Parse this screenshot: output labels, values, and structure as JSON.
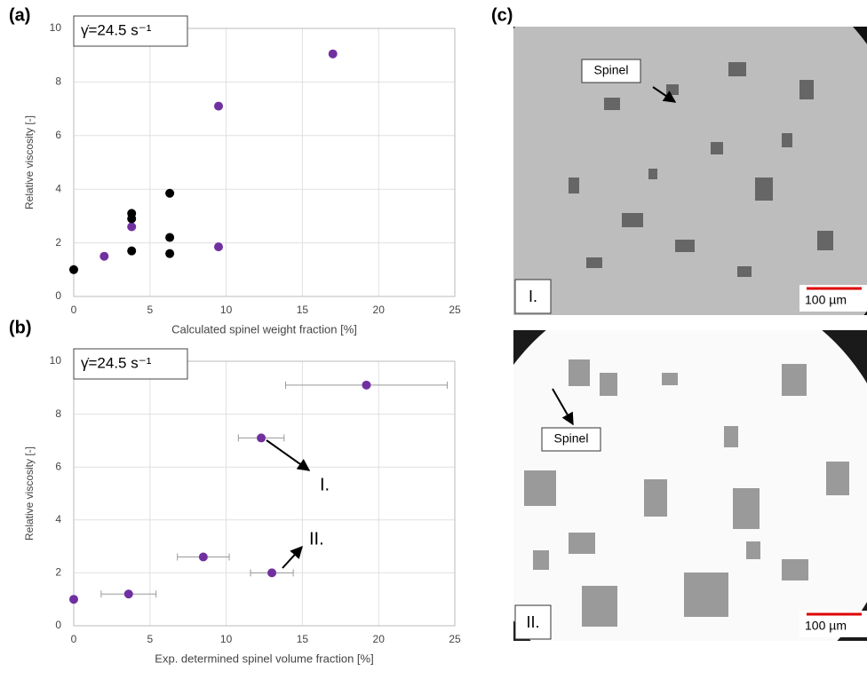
{
  "chart_data": [
    {
      "type": "scatter",
      "panel": "(a)",
      "annotation": "γ̇=24.5 s⁻¹",
      "x_label": "Calculated spinel weight fraction [%]",
      "y_label": "Relative viscosity [-]",
      "xlim": [
        0,
        25
      ],
      "xticks": [
        0,
        5,
        10,
        15,
        20,
        25
      ],
      "ylim": [
        0,
        10
      ],
      "yticks": [
        0,
        2,
        4,
        6,
        8,
        10
      ],
      "grid": true,
      "series": [
        {
          "color": "#7030a0",
          "x": [
            2.0,
            3.8,
            9.5,
            9.5,
            17.0
          ],
          "values": [
            1.5,
            2.6,
            1.85,
            7.1,
            9.05
          ]
        },
        {
          "color": "#000000",
          "x": [
            0,
            3.8,
            3.8,
            3.8,
            6.3,
            6.3,
            6.3
          ],
          "values": [
            1.0,
            1.7,
            2.9,
            3.1,
            1.6,
            2.2,
            3.85
          ]
        }
      ]
    },
    {
      "type": "scatter",
      "panel": "(b)",
      "annotation": "γ̇=24.5 s⁻¹",
      "x_label": "Exp. determined spinel volume fraction [%]",
      "y_label": "Relative viscosity [-]",
      "xlim": [
        0,
        25
      ],
      "xticks": [
        0,
        5,
        10,
        15,
        20,
        25
      ],
      "ylim": [
        0,
        10
      ],
      "yticks": [
        0,
        2,
        4,
        6,
        8,
        10
      ],
      "grid": true,
      "series": [
        {
          "color": "#7030a0",
          "x": [
            0,
            3.6,
            8.5,
            13.0,
            12.3,
            19.2
          ],
          "xerr": [
            0,
            1.8,
            1.7,
            1.4,
            1.5,
            5.3
          ],
          "values": [
            1.0,
            1.2,
            2.6,
            2.0,
            7.1,
            9.1
          ]
        }
      ],
      "callouts": [
        "I.",
        "II."
      ]
    }
  ],
  "micrograph_panel": {
    "panel": "(c)",
    "images": [
      {
        "label": "I.",
        "annotation": "Spinel",
        "scale_bar": "100 µm"
      },
      {
        "label": "II.",
        "annotation": "Spinel",
        "scale_bar": "100 µm"
      }
    ]
  }
}
